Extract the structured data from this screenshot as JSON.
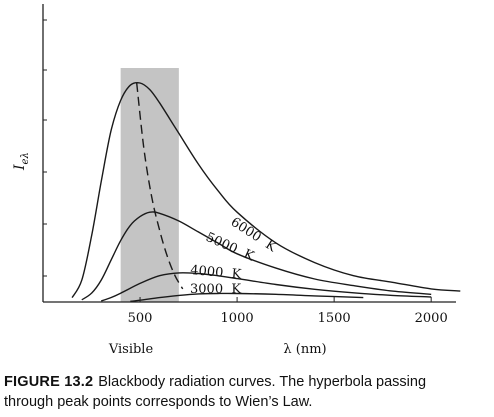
{
  "chart_data": {
    "type": "line",
    "title": "",
    "xlabel": "λ (nm)",
    "ylabel": "Ieλ",
    "ylabel_main": "I",
    "ylabel_sub": "eλ",
    "xlim": [
      0,
      2200
    ],
    "ylim": [
      0,
      1.0
    ],
    "x_ticks": [
      500,
      1000,
      1500,
      2000
    ],
    "x_tick_labels": [
      "500",
      "1000",
      "1500",
      "2000"
    ],
    "y_tick_labels": [],
    "grid": false,
    "shaded_region": {
      "label": "Visible",
      "x_from": 400,
      "x_to": 700,
      "color": "#c4c4c4"
    },
    "series": [
      {
        "name": "6000  K",
        "x": [
          150,
          200,
          250,
          300,
          350,
          400,
          450,
          500,
          550,
          600,
          700,
          800,
          900,
          1000,
          1200,
          1400,
          1600,
          1800,
          2000,
          2150
        ],
        "y": [
          0.02,
          0.1,
          0.3,
          0.55,
          0.78,
          0.92,
          0.99,
          1.0,
          0.97,
          0.91,
          0.77,
          0.63,
          0.51,
          0.41,
          0.27,
          0.18,
          0.12,
          0.09,
          0.06,
          0.05
        ]
      },
      {
        "name": "5000  K",
        "x": [
          200,
          250,
          300,
          350,
          400,
          450,
          500,
          550,
          600,
          700,
          800,
          900,
          1000,
          1200,
          1400,
          1600,
          1800,
          2000
        ],
        "y": [
          0.01,
          0.04,
          0.1,
          0.19,
          0.28,
          0.35,
          0.39,
          0.41,
          0.405,
          0.37,
          0.32,
          0.27,
          0.22,
          0.155,
          0.105,
          0.075,
          0.05,
          0.035
        ]
      },
      {
        "name": "4000  K",
        "x": [
          300,
          350,
          400,
          500,
          600,
          700,
          800,
          900,
          1000,
          1200,
          1400,
          1600,
          1800,
          2000
        ],
        "y": [
          0.005,
          0.02,
          0.04,
          0.085,
          0.12,
          0.133,
          0.13,
          0.12,
          0.107,
          0.08,
          0.058,
          0.042,
          0.03,
          0.023
        ]
      },
      {
        "name": "3000  K",
        "x": [
          450,
          500,
          600,
          700,
          800,
          900,
          1000,
          1200,
          1400,
          1650
        ],
        "y": [
          0.003,
          0.008,
          0.02,
          0.03,
          0.037,
          0.039,
          0.039,
          0.035,
          0.028,
          0.02
        ]
      }
    ],
    "wien_line": {
      "style": "dashed",
      "x": [
        483,
        520,
        560,
        600,
        640,
        680,
        720
      ],
      "y": [
        1.0,
        0.7,
        0.48,
        0.33,
        0.21,
        0.12,
        0.06
      ]
    }
  },
  "caption": {
    "label": "FIGURE 13.2",
    "text": "Blackbody radiation curves. The hyperbola passing",
    "text_line2": "through peak points corresponds to Wien’s Law."
  },
  "colors": {
    "curve": "#1a1a1a",
    "visible_band": "#c4c4c4",
    "axis": "#222222"
  }
}
